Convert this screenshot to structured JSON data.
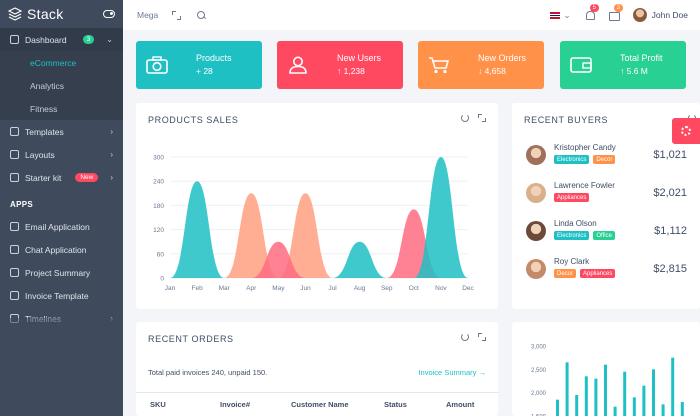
{
  "app": {
    "name": "Stack"
  },
  "sidebar": {
    "dashboard": {
      "label": "Dashboard",
      "count": "3"
    },
    "dashboard_sub": [
      "eCommerce",
      "Analytics",
      "Fitness"
    ],
    "items": [
      {
        "label": "Templates",
        "icon": "monitor-icon"
      },
      {
        "label": "Layouts",
        "icon": "layout-icon"
      },
      {
        "label": "Starter kit",
        "icon": "copy-icon",
        "badge": "New"
      }
    ],
    "section": "APPS",
    "apps": [
      {
        "label": "Email Application",
        "icon": "mail-icon"
      },
      {
        "label": "Chat Application",
        "icon": "chat-icon"
      },
      {
        "label": "Project Summary",
        "icon": "clipboard-icon"
      },
      {
        "label": "Invoice Template",
        "icon": "printer-icon"
      },
      {
        "label": "Timelines",
        "icon": "timeline-icon"
      }
    ]
  },
  "topbar": {
    "mega": "Mega",
    "notif_count": "5",
    "mail_count": "3",
    "user": "John Doe"
  },
  "stats": [
    {
      "title": "Products",
      "value": "+ 28",
      "color": "#1ec0c4",
      "icon": "camera-icon"
    },
    {
      "title": "New Users",
      "value": "↑ 1,238",
      "color": "#ff4961",
      "icon": "user-icon"
    },
    {
      "title": "New Orders",
      "value": "↓ 4,658",
      "color": "#ff9149",
      "icon": "cart-icon"
    },
    {
      "title": "Total Profit",
      "value": "↑ 5.6 M",
      "color": "#28d094",
      "icon": "wallet-icon"
    }
  ],
  "products_sales": {
    "title": "PRODUCTS SALES"
  },
  "chart_data": {
    "type": "area",
    "categories": [
      "Jan",
      "Feb",
      "Mar",
      "Apr",
      "May",
      "Jun",
      "Jul",
      "Aug",
      "Sep",
      "Oct",
      "Nov",
      "Dec"
    ],
    "ylim": [
      0,
      300
    ],
    "yticks": [
      0,
      60,
      120,
      180,
      240,
      300
    ],
    "series": [
      {
        "color": "#ff9f80",
        "values": [
          0,
          0,
          0,
          210,
          0,
          210,
          0,
          0,
          0,
          0,
          0,
          0
        ]
      },
      {
        "color": "#ff6b81",
        "values": [
          0,
          0,
          0,
          0,
          90,
          0,
          0,
          0,
          0,
          170,
          0,
          0
        ]
      },
      {
        "color": "#1ec0c4",
        "values": [
          0,
          240,
          0,
          0,
          0,
          0,
          0,
          90,
          0,
          0,
          300,
          0
        ]
      }
    ]
  },
  "recent_buyers": {
    "title": "RECENT BUYERS",
    "list": [
      {
        "name": "Kristopher Candy",
        "tags": [
          {
            "text": "Electronics",
            "color": "#1ec0c4"
          },
          {
            "text": "Decor",
            "color": "#ff9149"
          }
        ],
        "amount": "$1,021"
      },
      {
        "name": "Lawrence Fowler",
        "tags": [
          {
            "text": "Appliances",
            "color": "#ff4961"
          }
        ],
        "amount": "$2,021"
      },
      {
        "name": "Linda Olson",
        "tags": [
          {
            "text": "Electronics",
            "color": "#1ec0c4"
          },
          {
            "text": "Office",
            "color": "#28d094"
          }
        ],
        "amount": "$1,112"
      },
      {
        "name": "Roy Clark",
        "tags": [
          {
            "text": "Decor",
            "color": "#ff9149"
          },
          {
            "text": "Appliances",
            "color": "#ff4961"
          }
        ],
        "amount": "$2,815"
      }
    ]
  },
  "recent_orders": {
    "title": "RECENT ORDERS",
    "note": "Total paid invoices 240, unpaid 150.",
    "link": "Invoice Summary →",
    "columns": [
      "SKU",
      "Invoice#",
      "Customer Name",
      "Status",
      "Amount"
    ]
  },
  "mini_chart": {
    "yticks": [
      "3,000",
      "2,500",
      "2,000",
      "1,500"
    ],
    "bar_color": "#1ec0c4",
    "values": [
      1850,
      2650,
      1950,
      2350,
      2300,
      2600,
      1700,
      2450,
      1900,
      2150,
      2500,
      1750,
      2750,
      1800
    ]
  }
}
